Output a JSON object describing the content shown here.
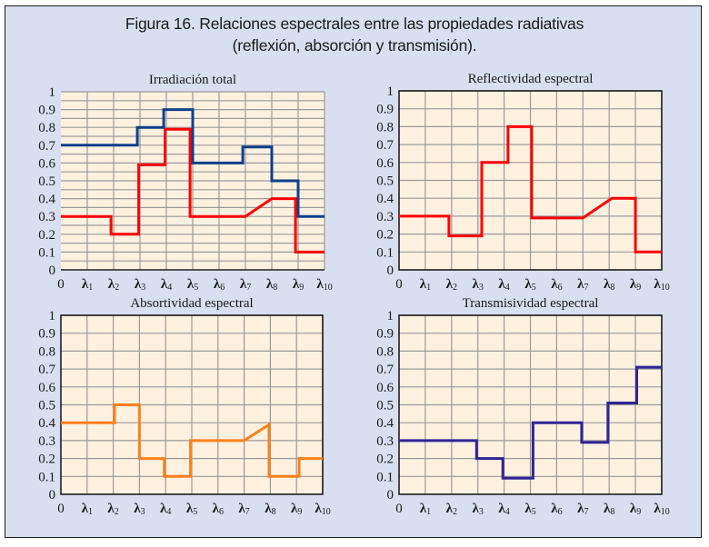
{
  "figure": {
    "title_line1": "Figura 16. Relaciones espectrales entre las propiedades radiativas",
    "title_line2": "(reflexión, absorción y transmisión)."
  },
  "colors": {
    "frame_bg": "#d8dff0",
    "plot_bg": "#fff1e0",
    "grid": "#999999",
    "total": "#0b3f8c",
    "reflect": "#ff0000",
    "absorb": "#ff7f1a",
    "transmit": "#2e2596"
  },
  "chart_data": [
    {
      "type": "line",
      "title": "Irradiación total",
      "xlabel": "",
      "ylabel": "",
      "ylim": [
        0,
        1
      ],
      "yticks": [
        "0",
        "0.1",
        "0.2",
        "0.3",
        "0.4",
        "0.5",
        "0.6",
        "0.7",
        "0.8",
        "0.9",
        "1"
      ],
      "xticks": [
        "0",
        "λ1",
        "λ2",
        "λ3",
        "λ4",
        "λ5",
        "λ6",
        "λ7",
        "λ8",
        "λ9",
        "λ10"
      ],
      "grid": "minor-0.05",
      "border": false,
      "series": [
        {
          "name": "Irradiación total",
          "color_key": "total",
          "points": [
            [
              0,
              0.7
            ],
            [
              2.9,
              0.7
            ],
            [
              2.9,
              0.8
            ],
            [
              3.9,
              0.8
            ],
            [
              3.9,
              0.9
            ],
            [
              5,
              0.9
            ],
            [
              5,
              0.6
            ],
            [
              6.9,
              0.6
            ],
            [
              6.9,
              0.69
            ],
            [
              8,
              0.69
            ],
            [
              8,
              0.5
            ],
            [
              9,
              0.5
            ],
            [
              9,
              0.3
            ],
            [
              10,
              0.3
            ]
          ]
        },
        {
          "name": "Reflectividad espectral",
          "color_key": "reflect",
          "points": [
            [
              0,
              0.3
            ],
            [
              1.9,
              0.3
            ],
            [
              1.9,
              0.2
            ],
            [
              2.95,
              0.2
            ],
            [
              2.95,
              0.59
            ],
            [
              3.95,
              0.59
            ],
            [
              3.95,
              0.79
            ],
            [
              4.9,
              0.79
            ],
            [
              4.9,
              0.3
            ],
            [
              7,
              0.3
            ],
            [
              8,
              0.4
            ],
            [
              8.9,
              0.4
            ],
            [
              8.9,
              0.1
            ],
            [
              10,
              0.1
            ]
          ]
        }
      ]
    },
    {
      "type": "line",
      "title": "Reflectividad espectral",
      "xlabel": "",
      "ylabel": "",
      "ylim": [
        0,
        1
      ],
      "yticks": [
        "0",
        "0.1",
        "0.2",
        "0.3",
        "0.4",
        "0.5",
        "0.6",
        "0.7",
        "0.8",
        "0.9",
        "1"
      ],
      "xticks": [
        "0",
        "λ1",
        "λ2",
        "λ3",
        "λ4",
        "λ5",
        "λ6",
        "λ7",
        "λ8",
        "λ9",
        "λ10"
      ],
      "grid": "major-0.1",
      "border": true,
      "series": [
        {
          "name": "Reflectividad espectral",
          "color_key": "reflect",
          "points": [
            [
              0,
              0.3
            ],
            [
              1.9,
              0.3
            ],
            [
              1.9,
              0.19
            ],
            [
              3.15,
              0.19
            ],
            [
              3.15,
              0.6
            ],
            [
              4.15,
              0.6
            ],
            [
              4.15,
              0.8
            ],
            [
              5.05,
              0.8
            ],
            [
              5.05,
              0.29
            ],
            [
              7,
              0.29
            ],
            [
              8.1,
              0.4
            ],
            [
              9,
              0.4
            ],
            [
              9,
              0.1
            ],
            [
              10,
              0.1
            ]
          ]
        }
      ]
    },
    {
      "type": "line",
      "title": "Absortividad espectral",
      "xlabel": "",
      "ylabel": "",
      "ylim": [
        0,
        1
      ],
      "yticks": [
        "0",
        "0.1",
        "0.2",
        "0.3",
        "0.4",
        "0.5",
        "0.6",
        "0.7",
        "0.8",
        "0.9",
        "1"
      ],
      "xticks": [
        "0",
        "λ1",
        "λ2",
        "λ3",
        "λ4",
        "λ5",
        "λ6",
        "λ7",
        "λ8",
        "λ9",
        "λ10"
      ],
      "grid": "major-0.1",
      "border": true,
      "series": [
        {
          "name": "Absortividad espectral",
          "color_key": "absorb",
          "points": [
            [
              0,
              0.4
            ],
            [
              2.05,
              0.4
            ],
            [
              2.05,
              0.5
            ],
            [
              3,
              0.5
            ],
            [
              3,
              0.2
            ],
            [
              3.95,
              0.2
            ],
            [
              3.95,
              0.1
            ],
            [
              4.95,
              0.1
            ],
            [
              4.95,
              0.3
            ],
            [
              7,
              0.3
            ],
            [
              7.95,
              0.39
            ],
            [
              7.95,
              0.1
            ],
            [
              9.1,
              0.1
            ],
            [
              9.1,
              0.2
            ],
            [
              10,
              0.2
            ]
          ]
        }
      ]
    },
    {
      "type": "line",
      "title": "Transmisividad espectral",
      "xlabel": "",
      "ylabel": "",
      "ylim": [
        0,
        1
      ],
      "yticks": [
        "0",
        "0.1",
        "0.2",
        "0.3",
        "0.4",
        "0.5",
        "0.6",
        "0.7",
        "0.8",
        "0.9",
        "1"
      ],
      "xticks": [
        "0",
        "λ1",
        "λ2",
        "λ3",
        "λ4",
        "λ5",
        "λ6",
        "λ7",
        "λ8",
        "λ9",
        "λ10"
      ],
      "grid": "major-0.1",
      "border": true,
      "series": [
        {
          "name": "Transmisividad espectral",
          "color_key": "transmit",
          "points": [
            [
              0,
              0.3
            ],
            [
              2.95,
              0.3
            ],
            [
              2.95,
              0.2
            ],
            [
              3.95,
              0.2
            ],
            [
              3.95,
              0.09
            ],
            [
              5.1,
              0.09
            ],
            [
              5.1,
              0.4
            ],
            [
              6.95,
              0.4
            ],
            [
              6.95,
              0.29
            ],
            [
              7.95,
              0.29
            ],
            [
              7.95,
              0.51
            ],
            [
              9.05,
              0.51
            ],
            [
              9.05,
              0.71
            ],
            [
              10,
              0.71
            ]
          ]
        }
      ]
    }
  ]
}
